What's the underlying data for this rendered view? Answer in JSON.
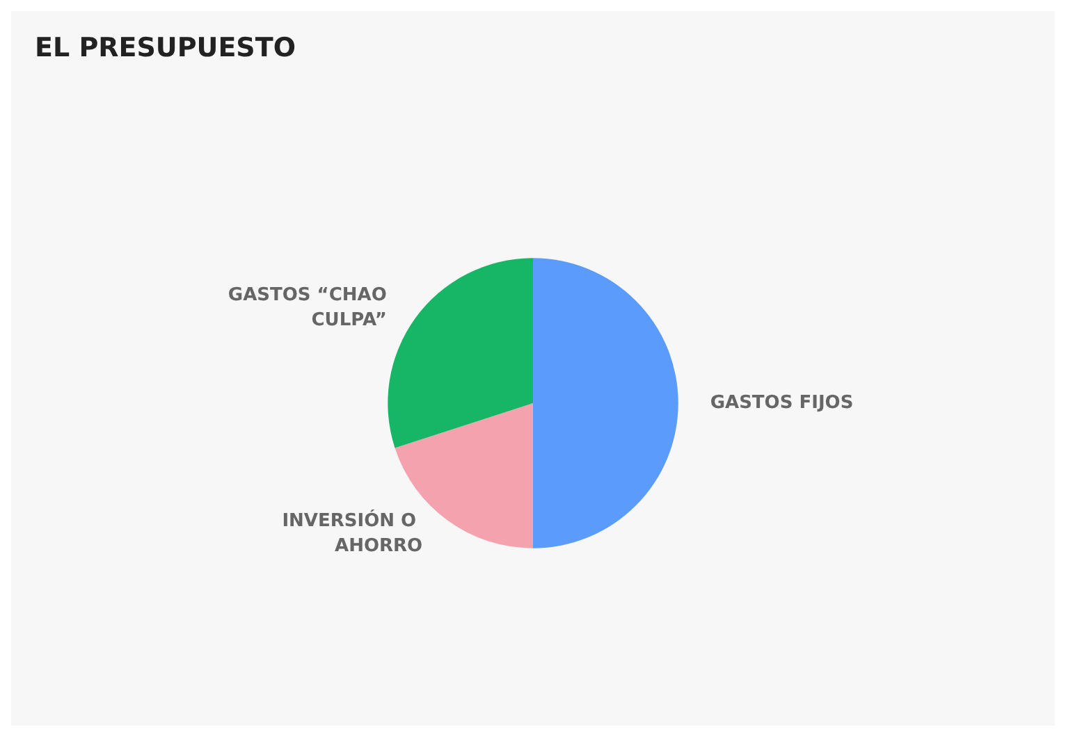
{
  "chart_data": {
    "type": "pie",
    "title": "EL PRESUPUESTO",
    "categories": [
      "GASTOS FIJOS",
      "INVERSIÓN O AHORRO",
      "GASTOS “CHAO CULPA”"
    ],
    "values": [
      50,
      20,
      30
    ],
    "colors": [
      "#5b9bfb",
      "#f4a2ad",
      "#17b566"
    ],
    "legend": false
  }
}
